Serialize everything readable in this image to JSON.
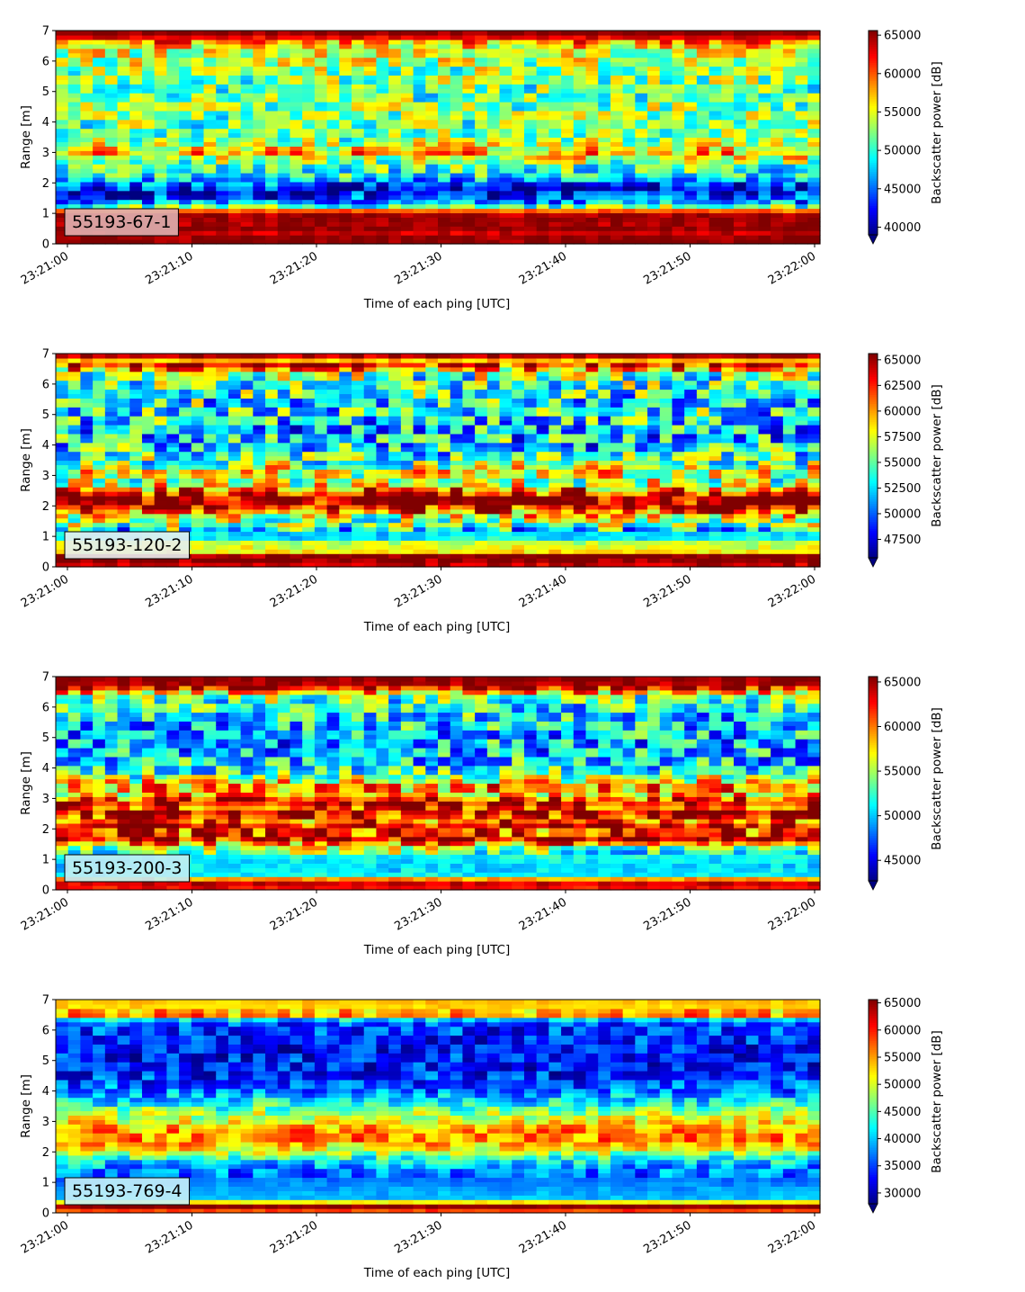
{
  "figure": {
    "background": "#ffffff",
    "colormap": "jet"
  },
  "chart_data": [
    {
      "type": "heatmap",
      "label": "55193-67-1",
      "label_box_color": "#e0b0b0",
      "xlabel": "Time of each ping [UTC]",
      "ylabel": "Range [m]",
      "x_ticks": [
        "23:21:00",
        "23:21:10",
        "23:21:20",
        "23:21:30",
        "23:21:40",
        "23:21:50",
        "23:22:00"
      ],
      "y_ticks": [
        0,
        1,
        2,
        3,
        4,
        5,
        6,
        7
      ],
      "ylim": [
        0,
        7
      ],
      "xlim": [
        "23:21:00",
        "23:22:00"
      ],
      "colorbar": {
        "label": "Backscatter power [dB]",
        "vmin": 39000,
        "vmax": 65600,
        "ticks": [
          40000,
          45000,
          50000,
          55000,
          60000,
          65000
        ],
        "extend": "min"
      },
      "range_profile": [
        {
          "r": 0.0,
          "v": 65500
        },
        {
          "r": 0.2,
          "v": 65500
        },
        {
          "r": 0.3,
          "v": 63000
        },
        {
          "r": 0.5,
          "v": 65500
        },
        {
          "r": 0.7,
          "v": 64500
        },
        {
          "r": 0.9,
          "v": 65500
        },
        {
          "r": 1.05,
          "v": 62500
        },
        {
          "r": 1.15,
          "v": 56000
        },
        {
          "r": 1.3,
          "v": 48000
        },
        {
          "r": 1.5,
          "v": 44000
        },
        {
          "r": 1.7,
          "v": 42000
        },
        {
          "r": 1.9,
          "v": 43000
        },
        {
          "r": 2.1,
          "v": 46500
        },
        {
          "r": 2.3,
          "v": 49500
        },
        {
          "r": 2.6,
          "v": 51500
        },
        {
          "r": 2.85,
          "v": 54500
        },
        {
          "r": 3.0,
          "v": 58000
        },
        {
          "r": 3.2,
          "v": 55000
        },
        {
          "r": 3.5,
          "v": 51500
        },
        {
          "r": 4.0,
          "v": 52000
        },
        {
          "r": 4.5,
          "v": 52500
        },
        {
          "r": 5.0,
          "v": 51500
        },
        {
          "r": 5.5,
          "v": 52500
        },
        {
          "r": 6.0,
          "v": 53500
        },
        {
          "r": 6.4,
          "v": 54500
        },
        {
          "r": 6.7,
          "v": 60000
        },
        {
          "r": 6.85,
          "v": 65500
        },
        {
          "r": 7.0,
          "v": 65500
        }
      ]
    },
    {
      "type": "heatmap",
      "label": "55193-120-2",
      "label_box_color": "#e8eef0",
      "xlabel": "Time of each ping [UTC]",
      "ylabel": "Range [m]",
      "x_ticks": [
        "23:21:00",
        "23:21:10",
        "23:21:20",
        "23:21:30",
        "23:21:40",
        "23:21:50",
        "23:22:00"
      ],
      "y_ticks": [
        0,
        1,
        2,
        3,
        4,
        5,
        6,
        7
      ],
      "ylim": [
        0,
        7
      ],
      "xlim": [
        "23:21:00",
        "23:22:00"
      ],
      "colorbar": {
        "label": "Backscatter power [dB]",
        "vmin": 45700,
        "vmax": 65600,
        "ticks": [
          47500,
          50000,
          52500,
          55000,
          57500,
          60000,
          62500,
          65000
        ],
        "extend": "min"
      },
      "range_profile": [
        {
          "r": 0.0,
          "v": 60000
        },
        {
          "r": 0.1,
          "v": 65500
        },
        {
          "r": 0.4,
          "v": 65500
        },
        {
          "r": 0.55,
          "v": 56000
        },
        {
          "r": 0.75,
          "v": 59000
        },
        {
          "r": 0.9,
          "v": 53000
        },
        {
          "r": 1.2,
          "v": 52500
        },
        {
          "r": 1.4,
          "v": 56000
        },
        {
          "r": 1.6,
          "v": 55500
        },
        {
          "r": 1.8,
          "v": 61000
        },
        {
          "r": 2.0,
          "v": 65000
        },
        {
          "r": 2.3,
          "v": 65500
        },
        {
          "r": 2.55,
          "v": 60500
        },
        {
          "r": 2.8,
          "v": 56000
        },
        {
          "r": 3.1,
          "v": 59000
        },
        {
          "r": 3.4,
          "v": 55000
        },
        {
          "r": 4.0,
          "v": 52500
        },
        {
          "r": 4.5,
          "v": 52000
        },
        {
          "r": 5.0,
          "v": 53500
        },
        {
          "r": 5.5,
          "v": 53500
        },
        {
          "r": 6.0,
          "v": 54500
        },
        {
          "r": 6.4,
          "v": 56000
        },
        {
          "r": 6.6,
          "v": 64000
        },
        {
          "r": 6.8,
          "v": 59000
        },
        {
          "r": 6.95,
          "v": 65500
        },
        {
          "r": 7.0,
          "v": 65500
        }
      ]
    },
    {
      "type": "heatmap",
      "label": "55193-200-3",
      "label_box_color": "#c4ecf4",
      "xlabel": "Time of each ping [UTC]",
      "ylabel": "Range [m]",
      "x_ticks": [
        "23:21:00",
        "23:21:10",
        "23:21:20",
        "23:21:30",
        "23:21:40",
        "23:21:50",
        "23:22:00"
      ],
      "y_ticks": [
        0,
        1,
        2,
        3,
        4,
        5,
        6,
        7
      ],
      "ylim": [
        0,
        7
      ],
      "xlim": [
        "23:21:00",
        "23:22:00"
      ],
      "colorbar": {
        "label": "Backscatter power [dB]",
        "vmin": 42700,
        "vmax": 65600,
        "ticks": [
          45000,
          50000,
          55000,
          60000,
          65000
        ],
        "extend": "min"
      },
      "range_profile": [
        {
          "r": 0.0,
          "v": 60000
        },
        {
          "r": 0.15,
          "v": 65500
        },
        {
          "r": 0.35,
          "v": 60000
        },
        {
          "r": 0.5,
          "v": 51000
        },
        {
          "r": 0.8,
          "v": 50500
        },
        {
          "r": 1.1,
          "v": 51500
        },
        {
          "r": 1.4,
          "v": 55000
        },
        {
          "r": 1.7,
          "v": 64500
        },
        {
          "r": 1.9,
          "v": 60000
        },
        {
          "r": 2.1,
          "v": 64000
        },
        {
          "r": 2.3,
          "v": 59500
        },
        {
          "r": 2.5,
          "v": 65000
        },
        {
          "r": 2.7,
          "v": 61500
        },
        {
          "r": 2.9,
          "v": 64000
        },
        {
          "r": 3.1,
          "v": 58000
        },
        {
          "r": 3.4,
          "v": 60000
        },
        {
          "r": 3.8,
          "v": 53000
        },
        {
          "r": 4.2,
          "v": 50500
        },
        {
          "r": 4.8,
          "v": 49500
        },
        {
          "r": 5.4,
          "v": 50500
        },
        {
          "r": 6.0,
          "v": 51500
        },
        {
          "r": 6.4,
          "v": 54500
        },
        {
          "r": 6.6,
          "v": 63000
        },
        {
          "r": 6.85,
          "v": 65500
        },
        {
          "r": 7.0,
          "v": 65500
        }
      ]
    },
    {
      "type": "heatmap",
      "label": "55193-769-4",
      "label_box_color": "#c8f0f8",
      "xlabel": "Time of each ping [UTC]",
      "ylabel": "Range [m]",
      "x_ticks": [
        "23:21:00",
        "23:21:10",
        "23:21:20",
        "23:21:30",
        "23:21:40",
        "23:21:50",
        "23:22:00"
      ],
      "y_ticks": [
        0,
        1,
        2,
        3,
        4,
        5,
        6,
        7
      ],
      "ylim": [
        0,
        7
      ],
      "xlim": [
        "23:21:00",
        "23:22:00"
      ],
      "colorbar": {
        "label": "Backscatter power [dB]",
        "vmin": 28000,
        "vmax": 65600,
        "ticks": [
          30000,
          35000,
          40000,
          45000,
          50000,
          55000,
          60000,
          65000
        ],
        "extend": "min"
      },
      "range_profile": [
        {
          "r": 0.0,
          "v": 55000
        },
        {
          "r": 0.1,
          "v": 60000
        },
        {
          "r": 0.22,
          "v": 65500
        },
        {
          "r": 0.32,
          "v": 58000
        },
        {
          "r": 0.45,
          "v": 40000
        },
        {
          "r": 0.8,
          "v": 38500
        },
        {
          "r": 1.2,
          "v": 36500
        },
        {
          "r": 1.5,
          "v": 38000
        },
        {
          "r": 1.8,
          "v": 43000
        },
        {
          "r": 2.1,
          "v": 52000
        },
        {
          "r": 2.4,
          "v": 56000
        },
        {
          "r": 2.7,
          "v": 55500
        },
        {
          "r": 3.0,
          "v": 52000
        },
        {
          "r": 3.3,
          "v": 47500
        },
        {
          "r": 3.6,
          "v": 42500
        },
        {
          "r": 4.0,
          "v": 37000
        },
        {
          "r": 4.6,
          "v": 33500
        },
        {
          "r": 5.2,
          "v": 33000
        },
        {
          "r": 5.8,
          "v": 34000
        },
        {
          "r": 6.3,
          "v": 35500
        },
        {
          "r": 6.55,
          "v": 62000
        },
        {
          "r": 6.7,
          "v": 48000
        },
        {
          "r": 6.85,
          "v": 57000
        },
        {
          "r": 7.0,
          "v": 50000
        }
      ]
    }
  ]
}
